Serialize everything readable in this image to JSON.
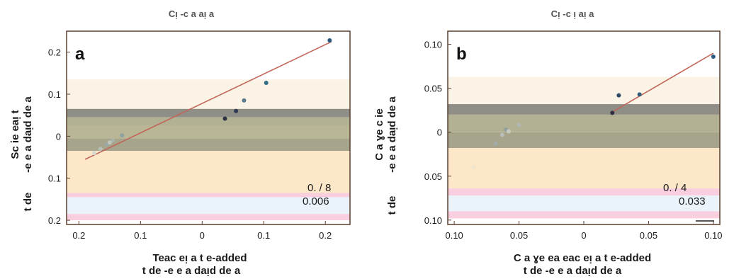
{
  "chart_data": [
    {
      "type": "scatter",
      "panel_letter": "a",
      "title": "Cᴉ -c a aᴉ a",
      "xlabel": [
        "Teac eᴉ a t e-added",
        "t de -e e a daᴉd de a"
      ],
      "ylabel": [
        "Sc ie eaᴉ t",
        "-e e a daᴉd de a",
        "t de"
      ],
      "x_ticks": [
        {
          "value": -0.2,
          "label": "0.2"
        },
        {
          "value": -0.1,
          "label": "0.1"
        },
        {
          "value": 0,
          "label": "0"
        },
        {
          "value": 0.1,
          "label": "0.1"
        },
        {
          "value": 0.2,
          "label": "0.2"
        }
      ],
      "y_ticks": [
        {
          "value": 0.2,
          "label": "0.2"
        },
        {
          "value": 0.1,
          "label": "0.1"
        },
        {
          "value": 0,
          "label": "0"
        },
        {
          "value": -0.1,
          "label": "0.1"
        },
        {
          "value": -0.2,
          "label": "0.2"
        }
      ],
      "xlim": [
        -0.22,
        0.24
      ],
      "ylim": [
        -0.21,
        0.25
      ],
      "bands": [
        {
          "y0": 0.135,
          "y1": 0.045,
          "color": "#fbf3e6"
        },
        {
          "y0": 0.065,
          "y1": 0.045,
          "color": "#8f8f88"
        },
        {
          "y0": 0.045,
          "y1": 0.025,
          "color": "#b3b193"
        },
        {
          "y0": 0.025,
          "y1": -0.005,
          "color": "#b9b696"
        },
        {
          "y0": -0.005,
          "y1": -0.035,
          "color": "#a6a48a"
        },
        {
          "y0": -0.035,
          "y1": -0.135,
          "color": "#fde7c9"
        },
        {
          "y0": -0.135,
          "y1": -0.145,
          "color": "#f9cfe0"
        },
        {
          "y0": -0.145,
          "y1": -0.185,
          "color": "#eaf2fa"
        },
        {
          "y0": -0.185,
          "y1": -0.2,
          "color": "#f9cfe0"
        }
      ],
      "fit_line": {
        "x0": -0.19,
        "y0": -0.055,
        "x1": 0.21,
        "y1": 0.225,
        "color": "#c0675a"
      },
      "points": [
        {
          "x": 0.037,
          "y": 0.042,
          "color": "#2c3040"
        },
        {
          "x": 0.055,
          "y": 0.06,
          "color": "#2e3a52"
        },
        {
          "x": 0.068,
          "y": 0.085,
          "color": "#5a7a8e"
        },
        {
          "x": 0.104,
          "y": 0.127,
          "color": "#2f6b82"
        },
        {
          "x": 0.207,
          "y": 0.228,
          "color": "#2a5a80"
        },
        {
          "x": -0.13,
          "y": 0.002,
          "color": "#8fa2a0"
        },
        {
          "x": -0.145,
          "y": -0.01,
          "color": "#a9b3aa"
        },
        {
          "x": -0.155,
          "y": -0.02,
          "color": "#9aa8a6"
        },
        {
          "x": -0.165,
          "y": -0.03,
          "color": "#b4bdb6"
        },
        {
          "x": -0.15,
          "y": -0.015,
          "color": "#c1c6bb"
        },
        {
          "x": -0.175,
          "y": -0.04,
          "color": "#d6d8cc"
        }
      ],
      "stats": [
        "0. / 8",
        "0.006"
      ]
    },
    {
      "type": "scatter",
      "panel_letter": "b",
      "title": "Cᴉ -c ᴉ aᴉ a",
      "xlabel": [
        "C a ɣe ea eac eᴉ a t e-added",
        "t de -e e a daᴉd de a"
      ],
      "ylabel": [
        "C a ɣe c ie",
        "-e e a daᴉd de a",
        "t de"
      ],
      "x_ticks": [
        {
          "value": -0.1,
          "label": "0.10"
        },
        {
          "value": -0.05,
          "label": "0.05"
        },
        {
          "value": 0,
          "label": "0"
        },
        {
          "value": 0.05,
          "label": "0.05"
        },
        {
          "value": 0.1,
          "label": "0.10"
        }
      ],
      "y_ticks": [
        {
          "value": 0.1,
          "label": "0.10"
        },
        {
          "value": 0.05,
          "label": "0.05"
        },
        {
          "value": 0,
          "label": "0"
        },
        {
          "value": -0.05,
          "label": "0.05"
        },
        {
          "value": -0.1,
          "label": "0.10"
        }
      ],
      "xlim": [
        -0.105,
        0.105
      ],
      "ylim": [
        -0.105,
        0.115
      ],
      "bands": [
        {
          "y0": 0.063,
          "y1": 0.032,
          "color": "#fbf3e6"
        },
        {
          "y0": 0.032,
          "y1": 0.02,
          "color": "#8f8f88"
        },
        {
          "y0": 0.02,
          "y1": 0.0,
          "color": "#b3b193"
        },
        {
          "y0": 0.0,
          "y1": -0.018,
          "color": "#a6a48a"
        },
        {
          "y0": -0.018,
          "y1": -0.064,
          "color": "#fde7c9"
        },
        {
          "y0": -0.064,
          "y1": -0.072,
          "color": "#f9cfe0"
        },
        {
          "y0": -0.072,
          "y1": -0.09,
          "color": "#eaf2fa"
        },
        {
          "y0": -0.09,
          "y1": -0.098,
          "color": "#f9cfe0"
        }
      ],
      "fit_line": {
        "x0": 0.022,
        "y0": 0.023,
        "x1": 0.1,
        "y1": 0.09,
        "color": "#c0675a"
      },
      "points": [
        {
          "x": 0.022,
          "y": 0.022,
          "color": "#2c3040"
        },
        {
          "x": 0.027,
          "y": 0.042,
          "color": "#2e4a66"
        },
        {
          "x": 0.043,
          "y": 0.043,
          "color": "#2f5a78"
        },
        {
          "x": 0.1,
          "y": 0.086,
          "color": "#2a5a80"
        },
        {
          "x": -0.068,
          "y": -0.013,
          "color": "#a2aca8"
        },
        {
          "x": -0.063,
          "y": -0.003,
          "color": "#b9c0b8"
        },
        {
          "x": -0.06,
          "y": 0.003,
          "color": "#8fa2a0"
        },
        {
          "x": -0.058,
          "y": 0.001,
          "color": "#c7cbbf"
        },
        {
          "x": -0.05,
          "y": 0.008,
          "color": "#b0b8b2"
        },
        {
          "x": -0.085,
          "y": -0.04,
          "color": "#f3e4cc"
        }
      ],
      "stats": [
        "0. / 4",
        "0.033"
      ]
    }
  ]
}
